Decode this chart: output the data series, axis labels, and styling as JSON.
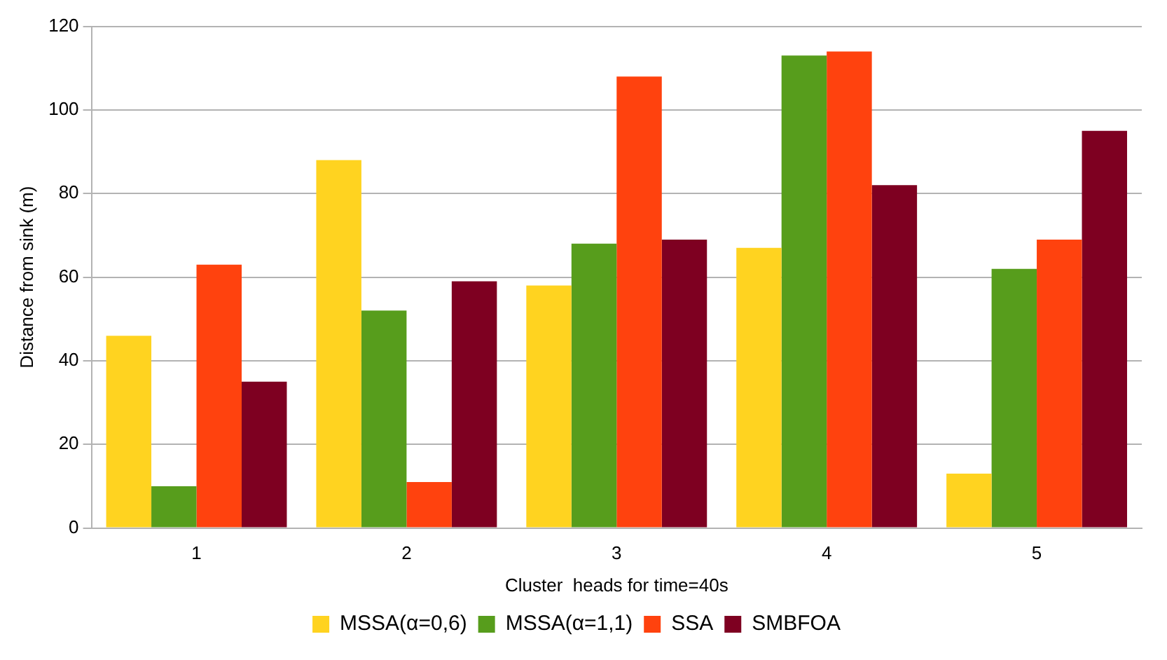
{
  "chart_data": {
    "type": "bar",
    "xlabel": "Cluster  heads for time=40s",
    "ylabel": "Distance from sink (m)",
    "categories": [
      "1",
      "2",
      "3",
      "4",
      "5"
    ],
    "series": [
      {
        "name": "MSSA(α=0,6)",
        "color": "#ffd320",
        "values": [
          46,
          88,
          58,
          67,
          13
        ]
      },
      {
        "name": "MSSA(α=1,1)",
        "color": "#579d1c",
        "values": [
          10,
          52,
          68,
          113,
          62
        ]
      },
      {
        "name": "SSA",
        "color": "#ff420e",
        "values": [
          63,
          11,
          108,
          114,
          69
        ]
      },
      {
        "name": "SMBFOA",
        "color": "#7e0021",
        "values": [
          35,
          59,
          69,
          82,
          95
        ]
      }
    ],
    "ylim": [
      0,
      120
    ],
    "yticks": [
      0,
      20,
      40,
      60,
      80,
      100,
      120
    ],
    "grid": "y",
    "legend": "bottom"
  }
}
